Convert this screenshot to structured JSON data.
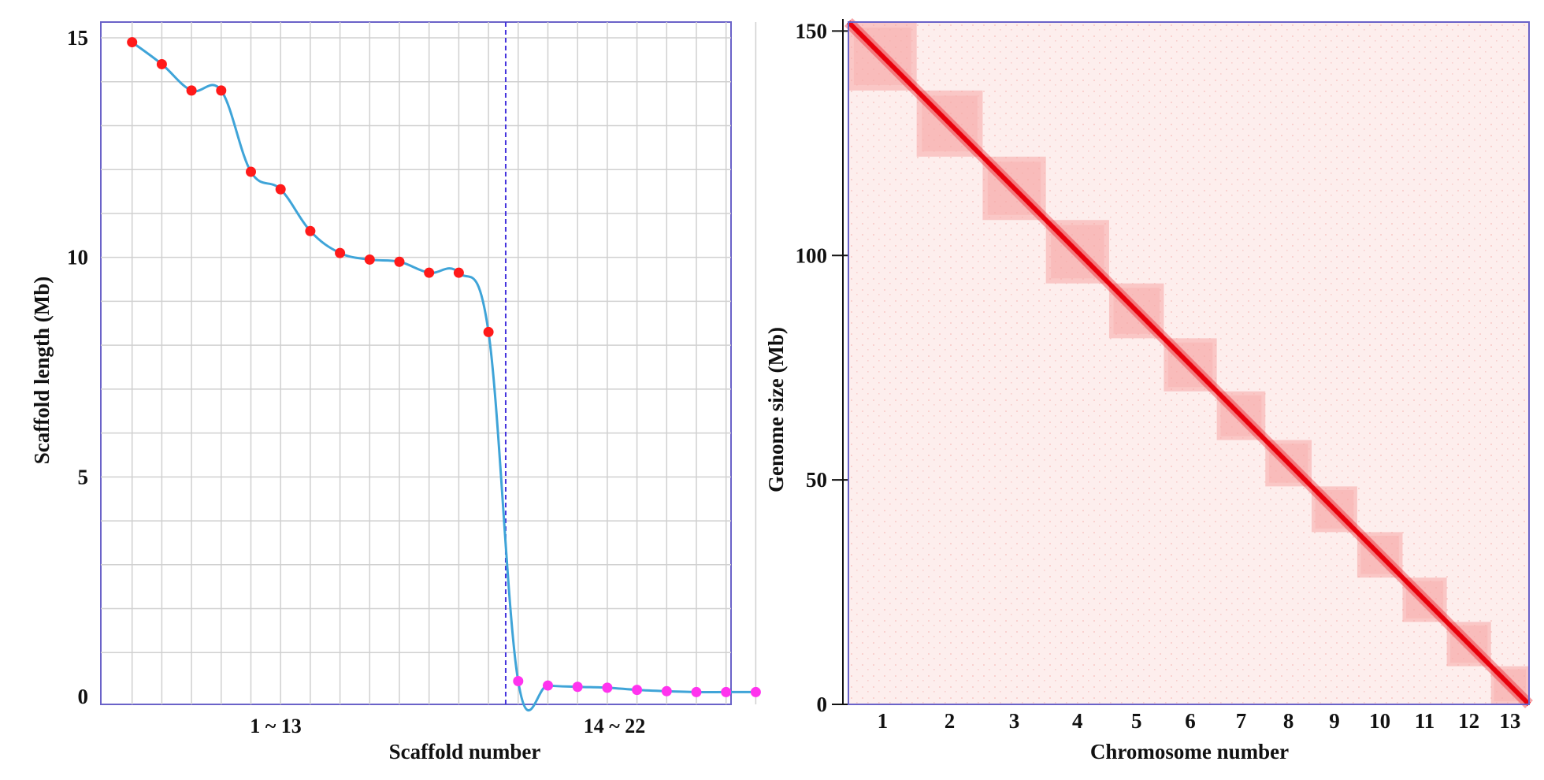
{
  "chart_data": [
    {
      "type": "line",
      "xlabel": "Scaffold number",
      "ylabel": "Scaffold length (Mb)",
      "ylim": [
        0,
        15
      ],
      "yticks": [
        0,
        5,
        10,
        15
      ],
      "x": [
        1,
        2,
        3,
        4,
        5,
        6,
        7,
        8,
        9,
        10,
        11,
        12,
        13,
        14,
        15,
        16,
        17,
        18,
        19,
        20,
        21,
        22
      ],
      "group_labels": [
        "1 ~ 13",
        "14 ~ 22"
      ],
      "series": [
        {
          "group": "1 ~ 13",
          "color": "#ff1a1a",
          "x": [
            1,
            2,
            3,
            4,
            5,
            6,
            7,
            8,
            9,
            10,
            11,
            12,
            13
          ],
          "values": [
            14.9,
            14.4,
            13.8,
            13.8,
            11.95,
            11.55,
            10.6,
            10.1,
            9.95,
            9.9,
            9.65,
            9.65,
            8.3
          ]
        },
        {
          "group": "14 ~ 22",
          "color": "#ff33ee",
          "x": [
            14,
            15,
            16,
            17,
            18,
            19,
            20,
            21,
            22
          ],
          "values": [
            0.35,
            0.25,
            0.22,
            0.2,
            0.15,
            0.12,
            0.1,
            0.1,
            0.1
          ]
        }
      ],
      "line_color": "#3fa4d8",
      "divider_color": "#4433dd",
      "grid": true
    },
    {
      "type": "heatmap",
      "xlabel": "Chromosome number",
      "ylabel": "Genome size (Mb)",
      "ylim": [
        0,
        152
      ],
      "yticks": [
        0,
        50,
        100,
        150
      ],
      "categories": [
        "1",
        "2",
        "3",
        "4",
        "5",
        "6",
        "7",
        "8",
        "9",
        "10",
        "11",
        "12",
        "13"
      ],
      "chromosome_sizes_mb": [
        14.9,
        14.4,
        13.8,
        13.8,
        11.95,
        11.55,
        10.6,
        10.1,
        9.95,
        9.9,
        9.65,
        9.65,
        8.3
      ],
      "colors": {
        "background": "#fdeeed",
        "diagonal": "#e8000b",
        "block": "#f7a8a5"
      }
    }
  ]
}
